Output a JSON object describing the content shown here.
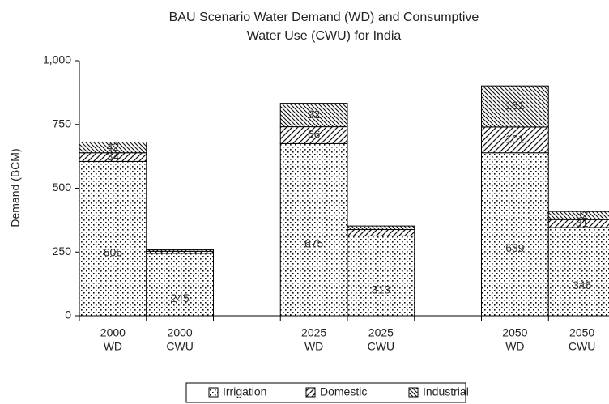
{
  "chart_data": {
    "type": "stacked_bar",
    "title": [
      "BAU Scenario Water Demand (WD) and Consumptive",
      "Water Use (CWU) for India"
    ],
    "y_label": "Demand (BCM)",
    "categories": [
      [
        "2000",
        "WD"
      ],
      [
        "2000",
        "CWU"
      ],
      null,
      [
        "2025",
        "WD"
      ],
      [
        "2025",
        "CWU"
      ],
      null,
      [
        "2050",
        "WD"
      ],
      [
        "2050",
        "CWU"
      ]
    ],
    "series": [
      {
        "name": "Irrigation",
        "pattern": "dots",
        "values": [
          605,
          245,
          null,
          675,
          313,
          null,
          639,
          346
        ],
        "value_labels": [
          "605",
          "245",
          null,
          "675",
          "313",
          null,
          "639",
          "346"
        ]
      },
      {
        "name": "Domestic",
        "pattern": "forward-hatch",
        "values": [
          34,
          8,
          null,
          66,
          25,
          null,
          101,
          31
        ],
        "value_labels": [
          "34",
          null,
          null,
          "66",
          null,
          null,
          "101",
          "31"
        ]
      },
      {
        "name": "Industrial",
        "pattern": "back-hatch",
        "values": [
          42,
          6,
          null,
          92,
          14,
          null,
          161,
          32
        ],
        "value_labels": [
          "42",
          null,
          null,
          "92",
          null,
          null,
          "161",
          "32"
        ]
      }
    ],
    "ylim": [
      0,
      1000
    ],
    "yticks": [
      0,
      250,
      500,
      750,
      {
        "value": 1000,
        "label": "1,000"
      }
    ],
    "grid": false,
    "legend": "bottom"
  }
}
